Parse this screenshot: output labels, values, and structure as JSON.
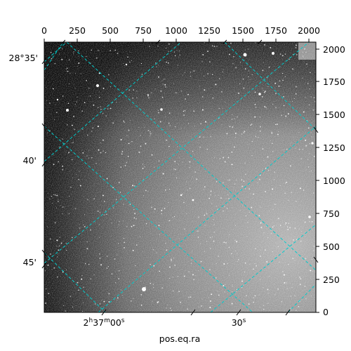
{
  "figure": {
    "xlabel": "pos.eq.ra",
    "pixel_x_ticks": [
      "0",
      "250",
      "500",
      "750",
      "1000",
      "1250",
      "1500",
      "1750",
      "2000"
    ],
    "pixel_y_ticks": [
      "0",
      "250",
      "500",
      "750",
      "1000",
      "1250",
      "1500",
      "1750",
      "2000"
    ],
    "ra_ticks": [
      {
        "h": "2",
        "m": "37",
        "s": "00",
        "hsup": "h",
        "msup": "m",
        "ssup": "s"
      },
      {
        "value": "30",
        "sup": "s"
      }
    ],
    "dec_ticks": [
      "28°35'",
      "40'",
      "45'"
    ],
    "grid_color": "#00cccc",
    "image_colormap": "gray"
  }
}
